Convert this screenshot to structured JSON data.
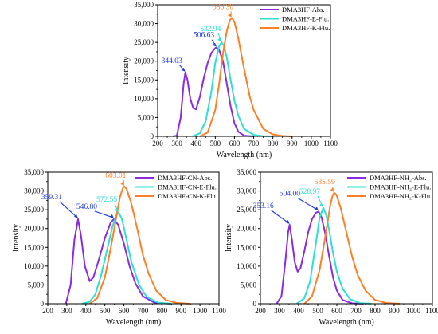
{
  "chart_data": [
    {
      "type": "line",
      "xlabel": "Wavelength (nm)",
      "ylabel": "Intensity",
      "xlim": [
        200,
        1100
      ],
      "ylim": [
        0,
        35000
      ],
      "xticks": [
        "200",
        "300",
        "400",
        "500",
        "600",
        "700",
        "800",
        "900",
        "1000",
        "1100"
      ],
      "yticks": [
        "0",
        "5000",
        "10000",
        "15000",
        "20000",
        "25000",
        "30000",
        "35000"
      ],
      "legend_position": "top-right",
      "series": [
        {
          "name": "DMA3HF-Abs.",
          "color": "#8a2be2",
          "x": [
            280,
            300,
            320,
            335,
            344,
            355,
            370,
            385,
            400,
            420,
            440,
            460,
            480,
            500,
            507,
            520,
            540,
            560,
            580,
            600,
            620,
            650,
            700
          ],
          "y": [
            0,
            200,
            5000,
            14000,
            17000,
            15000,
            10000,
            7500,
            7200,
            10500,
            15500,
            19500,
            22200,
            23500,
            23600,
            23000,
            20000,
            14000,
            8000,
            3500,
            1200,
            200,
            0
          ]
        },
        {
          "name": "DMA3HF-E-Flu.",
          "color": "#2ee0d0",
          "x": [
            380,
            420,
            450,
            480,
            500,
            520,
            533,
            545,
            560,
            580,
            600,
            620,
            650,
            700,
            750,
            800
          ],
          "y": [
            0,
            800,
            4000,
            12000,
            19500,
            24000,
            25000,
            24000,
            21000,
            15000,
            9500,
            5500,
            2000,
            400,
            50,
            0
          ]
        },
        {
          "name": "DMA3HF-K-Flu.",
          "color": "#ff7f27",
          "x": [
            420,
            460,
            500,
            520,
            540,
            560,
            575,
            586,
            600,
            620,
            650,
            680,
            700,
            750,
            800,
            850,
            900
          ],
          "y": [
            0,
            1000,
            7000,
            14000,
            22000,
            28000,
            30800,
            31500,
            30500,
            26000,
            18000,
            10500,
            7000,
            2000,
            500,
            100,
            0
          ]
        }
      ],
      "annotations": [
        {
          "text": "344.03",
          "x": 344,
          "y": 17000,
          "color": "#1f3ad8"
        },
        {
          "text": "506.63",
          "x": 507,
          "y": 23600,
          "color": "#1f3ad8"
        },
        {
          "text": "532.94",
          "x": 533,
          "y": 25000,
          "color": "#2ee0d0"
        },
        {
          "text": "586.30",
          "x": 586,
          "y": 31500,
          "color": "#ff7f27"
        }
      ]
    },
    {
      "type": "line",
      "xlabel": "Wavelength (nm)",
      "ylabel": "Intensity",
      "xlim": [
        200,
        1100
      ],
      "ylim": [
        0,
        35000
      ],
      "xticks": [
        "200",
        "300",
        "400",
        "500",
        "600",
        "700",
        "800",
        "900",
        "1000",
        "1100"
      ],
      "yticks": [
        "0",
        "5000",
        "10000",
        "15000",
        "20000",
        "25000",
        "30000",
        "35000"
      ],
      "legend_position": "top-right",
      "series": [
        {
          "name": "DMA3HF-CN-Abs.",
          "color": "#8a2be2",
          "x": [
            295,
            320,
            340,
            359,
            375,
            395,
            420,
            440,
            470,
            500,
            530,
            547,
            570,
            600,
            630,
            660,
            700,
            760,
            850
          ],
          "y": [
            0,
            5000,
            17000,
            22500,
            18000,
            10000,
            6000,
            7000,
            12000,
            17500,
            21500,
            22500,
            21000,
            16000,
            10000,
            5500,
            2000,
            300,
            0
          ]
        },
        {
          "name": "DMA3HF-CN-E-Flu.",
          "color": "#2ee0d0",
          "x": [
            380,
            420,
            450,
            480,
            510,
            540,
            560,
            573,
            590,
            610,
            640,
            680,
            720,
            780,
            850
          ],
          "y": [
            0,
            500,
            2500,
            7500,
            14000,
            20500,
            23500,
            24200,
            22500,
            18000,
            11000,
            5000,
            1800,
            300,
            0
          ]
        },
        {
          "name": "DMA3HF-CN-K-Flu.",
          "color": "#ff7f27",
          "x": [
            420,
            460,
            500,
            530,
            560,
            580,
            595,
            603,
            615,
            640,
            670,
            700,
            730,
            770,
            820,
            880,
            950
          ],
          "y": [
            0,
            1500,
            7000,
            14500,
            23000,
            28500,
            30800,
            31200,
            30500,
            26500,
            20000,
            13000,
            8000,
            3500,
            1000,
            200,
            0
          ]
        }
      ],
      "annotations": [
        {
          "text": "359.31",
          "x": 359,
          "y": 22500,
          "color": "#1f3ad8"
        },
        {
          "text": "546.80",
          "x": 547,
          "y": 22500,
          "color": "#1f3ad8"
        },
        {
          "text": "572.55",
          "x": 573,
          "y": 24200,
          "color": "#2ee0d0"
        },
        {
          "text": "603.01",
          "x": 603,
          "y": 31200,
          "color": "#ff7f27"
        }
      ]
    },
    {
      "type": "line",
      "xlabel": "Wavelength (nm)",
      "ylabel": "Intensity",
      "xlim": [
        200,
        1100
      ],
      "ylim": [
        0,
        35000
      ],
      "xticks": [
        "200",
        "300",
        "400",
        "500",
        "600",
        "700",
        "800",
        "900",
        "1000",
        "1100"
      ],
      "yticks": [
        "0",
        "5000",
        "10000",
        "15000",
        "20000",
        "25000",
        "30000",
        "35000"
      ],
      "legend_position": "top-right",
      "series": [
        {
          "name": "DMA3HF-NH₂-Abs.",
          "color": "#8a2be2",
          "x": [
            285,
            310,
            330,
            345,
            353,
            365,
            380,
            395,
            410,
            430,
            450,
            470,
            490,
            504,
            520,
            540,
            560,
            580,
            600,
            630,
            680,
            740
          ],
          "y": [
            0,
            2000,
            11000,
            19000,
            21000,
            17000,
            11000,
            8500,
            9500,
            14000,
            19000,
            22500,
            24200,
            24500,
            23000,
            18500,
            12500,
            7000,
            3500,
            1000,
            100,
            0
          ]
        },
        {
          "name": "DMA3HF-NH₂-E-Flu.",
          "color": "#2ee0d0",
          "x": [
            390,
            430,
            460,
            490,
            510,
            529,
            545,
            560,
            580,
            600,
            630,
            670,
            720,
            780
          ],
          "y": [
            0,
            1500,
            6000,
            16000,
            23000,
            25500,
            23500,
            19500,
            13500,
            8500,
            4000,
            1200,
            200,
            0
          ]
        },
        {
          "name": "DMA3HF-NH₂-K-Flu.",
          "color": "#ff7f27",
          "x": [
            430,
            470,
            510,
            540,
            565,
            578,
            586,
            598,
            620,
            650,
            680,
            710,
            750,
            800,
            860,
            930
          ],
          "y": [
            0,
            2000,
            9000,
            18000,
            26000,
            28800,
            29500,
            29000,
            25500,
            19000,
            12500,
            7500,
            3500,
            1000,
            200,
            0
          ]
        }
      ],
      "annotations": [
        {
          "text": "353.16",
          "x": 353,
          "y": 21000,
          "color": "#1f3ad8"
        },
        {
          "text": "504.00",
          "x": 504,
          "y": 24500,
          "color": "#1f3ad8"
        },
        {
          "text": "528.97",
          "x": 529,
          "y": 25500,
          "color": "#2ee0d0"
        },
        {
          "text": "585.59",
          "x": 586,
          "y": 29500,
          "color": "#ff7f27"
        }
      ]
    }
  ]
}
